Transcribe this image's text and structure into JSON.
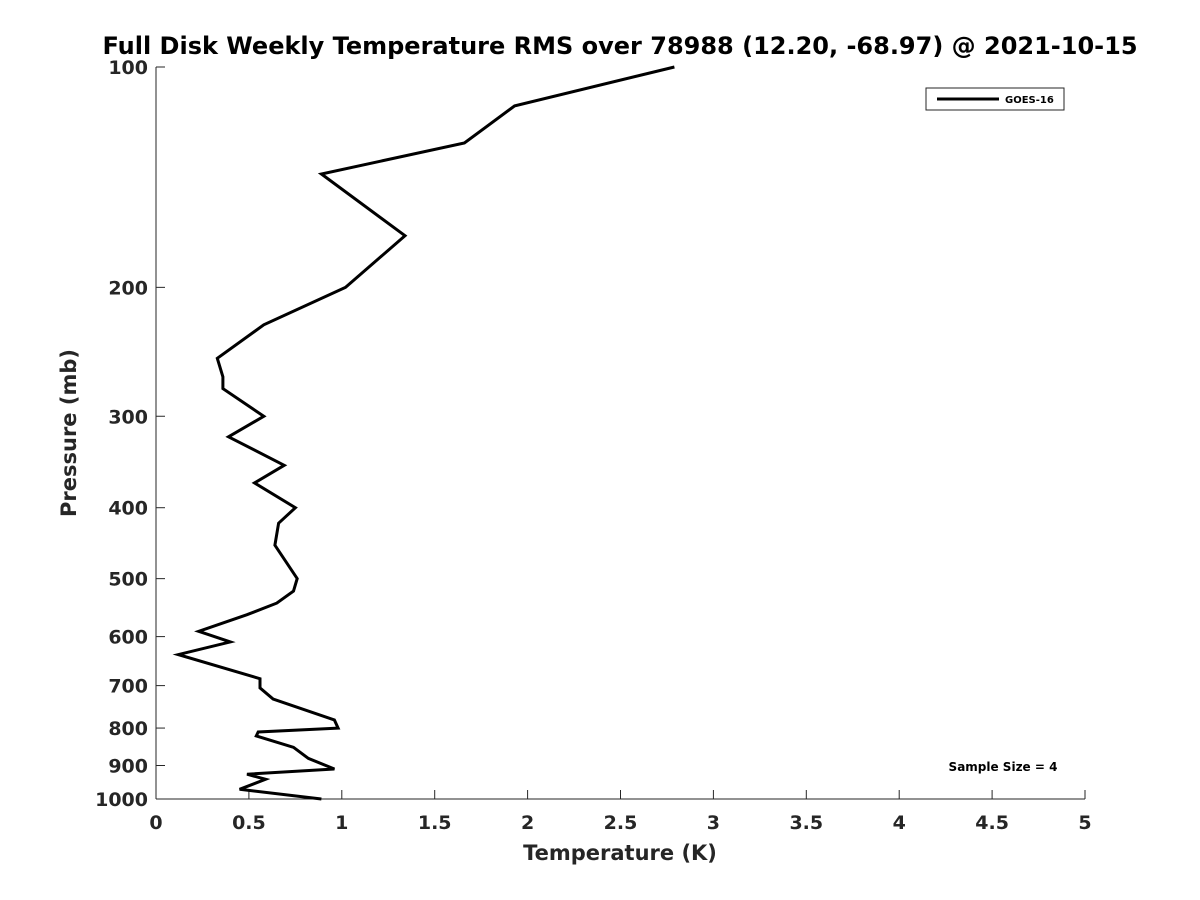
{
  "chart_data": {
    "type": "line",
    "title": "Full Disk Weekly Temperature RMS over 78988 (12.20, -68.97) @ 2021-10-15",
    "xlabel": "Temperature (K)",
    "ylabel": "Pressure (mb)",
    "xlim": [
      0,
      5
    ],
    "ylim": [
      100,
      1000
    ],
    "y_scale": "log",
    "y_reversed": true,
    "x_ticks": [
      "0",
      "0.5",
      "1",
      "1.5",
      "2",
      "2.5",
      "3",
      "3.5",
      "4",
      "4.5",
      "5"
    ],
    "y_ticks": [
      "100",
      "200",
      "300",
      "400",
      "500",
      "600",
      "700",
      "800",
      "900",
      "1000"
    ],
    "grid": false,
    "legend_position": "top-right",
    "annotation": "Sample Size = 4",
    "series": [
      {
        "name": "GOES-16",
        "color": "#000000",
        "x": [
          2.79,
          1.93,
          1.66,
          0.89,
          1.34,
          1.02,
          0.58,
          0.33,
          0.36,
          0.36,
          0.58,
          0.39,
          0.69,
          0.53,
          0.75,
          0.66,
          0.64,
          0.76,
          0.74,
          0.65,
          0.49,
          0.23,
          0.4,
          0.12,
          0.56,
          0.56,
          0.63,
          0.96,
          0.98,
          0.55,
          0.54,
          0.74,
          0.82,
          0.96,
          0.49,
          0.59,
          0.45,
          0.89
        ],
        "y": [
          100,
          113,
          127,
          140,
          170,
          200,
          225,
          250,
          265,
          275,
          300,
          320,
          350,
          370,
          400,
          420,
          450,
          500,
          520,
          540,
          560,
          590,
          610,
          635,
          685,
          705,
          730,
          780,
          800,
          810,
          820,
          850,
          880,
          910,
          925,
          940,
          970,
          1000
        ]
      }
    ]
  }
}
